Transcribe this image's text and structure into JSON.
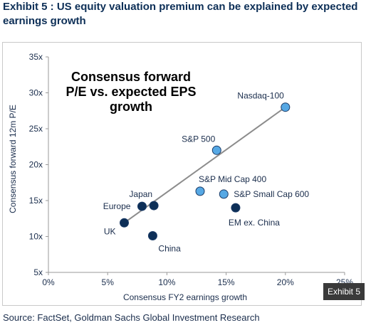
{
  "header": {
    "title": "Exhibit 5 : US equity valuation premium can be explained by expected earnings growth"
  },
  "footer": {
    "source": "Source: FactSet, Goldman Sachs Global Investment Research",
    "exhibit_tag": "Exhibit 5"
  },
  "chart_data": {
    "type": "scatter",
    "title": "Consensus forward P/E vs. expected EPS growth",
    "title_lines": [
      "Consensus forward",
      "P/E vs. expected EPS",
      "growth"
    ],
    "xlabel": "Consensus FY2 earnings growth",
    "ylabel": "Consensus forward  12m P/E",
    "xlim": [
      0,
      25
    ],
    "ylim": [
      5,
      35
    ],
    "x_ticks": [
      0,
      5,
      10,
      15,
      20,
      25
    ],
    "x_tick_labels": [
      "0%",
      "5%",
      "10%",
      "15%",
      "20%",
      "25%"
    ],
    "y_ticks": [
      5,
      10,
      15,
      20,
      25,
      30,
      35
    ],
    "y_tick_labels": [
      "5x",
      "10x",
      "15x",
      "20x",
      "25x",
      "30x",
      "35x"
    ],
    "grid": false,
    "points": [
      {
        "label": "Nasdaq-100",
        "x": 20.0,
        "y": 28.0,
        "group": "us",
        "label_pos": "above-left"
      },
      {
        "label": "S&P 500",
        "x": 14.2,
        "y": 22.0,
        "group": "us",
        "label_pos": "above-left"
      },
      {
        "label": "S&P Mid Cap 400",
        "x": 12.8,
        "y": 16.3,
        "group": "us",
        "label_pos": "above-right"
      },
      {
        "label": "S&P Small Cap  600",
        "x": 14.8,
        "y": 15.9,
        "group": "us",
        "label_pos": "right"
      },
      {
        "label": "EM ex. China",
        "x": 15.8,
        "y": 14.0,
        "group": "intl",
        "label_pos": "below"
      },
      {
        "label": "Japan",
        "x": 8.9,
        "y": 14.3,
        "group": "intl",
        "label_pos": "above-left"
      },
      {
        "label": "Europe",
        "x": 7.9,
        "y": 14.2,
        "group": "intl",
        "label_pos": "left"
      },
      {
        "label": "UK",
        "x": 6.4,
        "y": 11.9,
        "group": "intl",
        "label_pos": "below-left"
      },
      {
        "label": "China",
        "x": 8.8,
        "y": 10.1,
        "group": "intl",
        "label_pos": "below-right"
      }
    ],
    "trendline": {
      "x": [
        6.4,
        20.0
      ],
      "y": [
        11.9,
        28.0
      ]
    },
    "colors": {
      "us": "#56a8e4",
      "intl": "#0d2f57",
      "marker_stroke": "#1a3a66",
      "trendline": "#8c8c8c",
      "text": "#1a2d4c"
    }
  }
}
